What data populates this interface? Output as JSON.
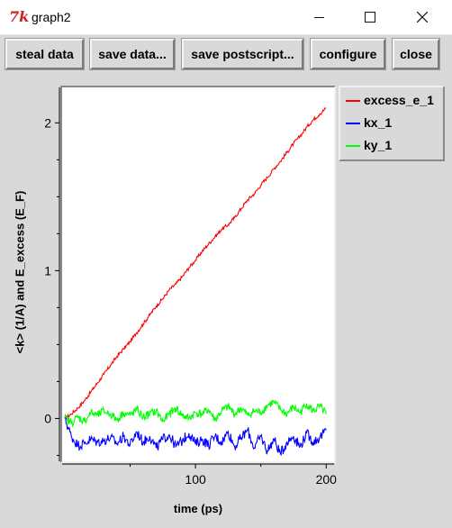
{
  "window": {
    "title": "graph2",
    "app_icon": "tk-icon"
  },
  "toolbar": {
    "steal_label": "steal data",
    "save_data_label": "save data...",
    "save_ps_label": "save postscript...",
    "configure_label": "configure",
    "close_label": "close"
  },
  "legend": {
    "items": [
      {
        "label": "excess_e_1",
        "color": "#ff0000"
      },
      {
        "label": "kx_1",
        "color": "#0000ff"
      },
      {
        "label": "ky_1",
        "color": "#00ff00"
      }
    ]
  },
  "chart_data": {
    "type": "line",
    "title": "",
    "xlabel": "time (ps)",
    "ylabel": "<k> (1/A) and E_excess (E_F)",
    "xlim": [
      -2,
      206
    ],
    "ylim": [
      -0.29,
      2.24
    ],
    "x_ticks": [
      {
        "value": 100,
        "label": "100"
      },
      {
        "value": 200,
        "label": "200"
      }
    ],
    "x_minor_ticks": [
      50,
      150
    ],
    "y_ticks": [
      {
        "value": 0,
        "label": "0"
      },
      {
        "value": 1,
        "label": "1"
      },
      {
        "value": 2,
        "label": "2"
      }
    ],
    "y_minor_ticks": [
      -0.25,
      0.25,
      0.5,
      0.75,
      1.25,
      1.5,
      1.75
    ],
    "grid": false,
    "legend_position": "right",
    "series": [
      {
        "name": "excess_e_1",
        "color": "#ff0000",
        "x": [
          0,
          5,
          10,
          15,
          20,
          25,
          30,
          35,
          40,
          45,
          50,
          55,
          60,
          65,
          70,
          75,
          80,
          85,
          90,
          95,
          100,
          105,
          110,
          115,
          120,
          125,
          130,
          135,
          140,
          145,
          150,
          155,
          160,
          165,
          170,
          175,
          180,
          185,
          190,
          195,
          200
        ],
        "y": [
          0.0,
          0.03,
          0.07,
          0.12,
          0.18,
          0.24,
          0.3,
          0.36,
          0.42,
          0.47,
          0.52,
          0.58,
          0.64,
          0.7,
          0.76,
          0.81,
          0.87,
          0.91,
          0.96,
          1.02,
          1.07,
          1.13,
          1.18,
          1.23,
          1.28,
          1.31,
          1.36,
          1.42,
          1.48,
          1.52,
          1.58,
          1.63,
          1.69,
          1.74,
          1.8,
          1.86,
          1.91,
          1.97,
          2.02,
          2.06,
          2.1
        ]
      },
      {
        "name": "kx_1",
        "color": "#0000ff",
        "x": [
          0,
          5,
          10,
          15,
          20,
          25,
          30,
          35,
          40,
          45,
          50,
          55,
          60,
          65,
          70,
          75,
          80,
          85,
          90,
          95,
          100,
          105,
          110,
          115,
          120,
          125,
          130,
          135,
          140,
          145,
          150,
          155,
          160,
          165,
          170,
          175,
          180,
          185,
          190,
          195,
          200
        ],
        "y": [
          0.0,
          -0.12,
          -0.18,
          -0.17,
          -0.14,
          -0.16,
          -0.15,
          -0.13,
          -0.17,
          -0.12,
          -0.18,
          -0.09,
          -0.16,
          -0.12,
          -0.2,
          -0.14,
          -0.11,
          -0.19,
          -0.15,
          -0.1,
          -0.17,
          -0.14,
          -0.18,
          -0.12,
          -0.16,
          -0.09,
          -0.19,
          -0.13,
          -0.08,
          -0.2,
          -0.12,
          -0.22,
          -0.14,
          -0.24,
          -0.16,
          -0.12,
          -0.19,
          -0.1,
          -0.16,
          -0.13,
          -0.08
        ]
      },
      {
        "name": "ky_1",
        "color": "#00ff00",
        "x": [
          0,
          5,
          10,
          15,
          20,
          25,
          30,
          35,
          40,
          45,
          50,
          55,
          60,
          65,
          70,
          75,
          80,
          85,
          90,
          95,
          100,
          105,
          110,
          115,
          120,
          125,
          130,
          135,
          140,
          145,
          150,
          155,
          160,
          165,
          170,
          175,
          180,
          185,
          190,
          195,
          200
        ],
        "y": [
          0.0,
          -0.03,
          0.01,
          -0.02,
          0.04,
          0.02,
          0.05,
          0.03,
          -0.01,
          0.04,
          0.02,
          0.06,
          0.01,
          0.03,
          0.05,
          -0.02,
          0.03,
          0.07,
          0.02,
          0.0,
          0.04,
          0.03,
          0.06,
          -0.01,
          0.05,
          0.08,
          0.03,
          0.07,
          0.02,
          0.05,
          0.04,
          0.09,
          0.11,
          0.06,
          0.03,
          0.08,
          0.04,
          0.1,
          0.05,
          0.08,
          0.03
        ]
      }
    ]
  }
}
